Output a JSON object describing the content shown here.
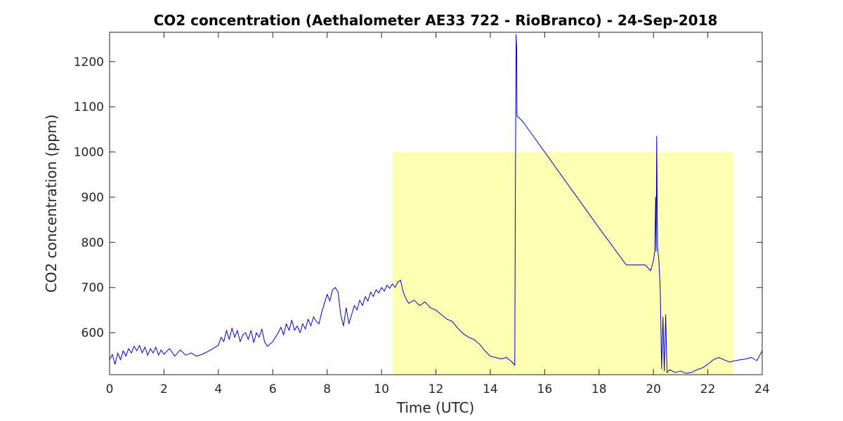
{
  "chart_data": {
    "type": "line",
    "title": "CO2 concentration (Aethalometer AE33 722 - RioBranco) - 24-Sep-2018",
    "xlabel": "Time (UTC)",
    "ylabel": "CO2 concentration (ppm)",
    "xlim": [
      0,
      24
    ],
    "ylim": [
      507,
      1265
    ],
    "xticks": [
      0,
      2,
      4,
      6,
      8,
      10,
      12,
      14,
      16,
      18,
      20,
      22,
      24
    ],
    "yticks": [
      600,
      700,
      800,
      900,
      1000,
      1100,
      1200
    ],
    "grid": false,
    "line_color": "#0000cc",
    "highlight": {
      "x_start": 10.4,
      "x_end": 22.95,
      "y_top": 1000,
      "color": "#ffffb4"
    },
    "series": [
      {
        "values": [
          [
            0.0,
            540
          ],
          [
            0.1,
            552
          ],
          [
            0.2,
            530
          ],
          [
            0.3,
            555
          ],
          [
            0.4,
            540
          ],
          [
            0.5,
            560
          ],
          [
            0.6,
            548
          ],
          [
            0.7,
            565
          ],
          [
            0.8,
            555
          ],
          [
            0.9,
            570
          ],
          [
            1.0,
            560
          ],
          [
            1.1,
            572
          ],
          [
            1.2,
            555
          ],
          [
            1.3,
            568
          ],
          [
            1.4,
            550
          ],
          [
            1.5,
            565
          ],
          [
            1.6,
            555
          ],
          [
            1.7,
            568
          ],
          [
            1.8,
            550
          ],
          [
            1.9,
            562
          ],
          [
            2.0,
            552
          ],
          [
            2.2,
            565
          ],
          [
            2.4,
            548
          ],
          [
            2.6,
            562
          ],
          [
            2.8,
            550
          ],
          [
            3.0,
            555
          ],
          [
            3.2,
            548
          ],
          [
            3.4,
            552
          ],
          [
            3.6,
            558
          ],
          [
            3.8,
            565
          ],
          [
            4.0,
            572
          ],
          [
            4.1,
            590
          ],
          [
            4.2,
            580
          ],
          [
            4.3,
            605
          ],
          [
            4.4,
            585
          ],
          [
            4.5,
            610
          ],
          [
            4.6,
            590
          ],
          [
            4.7,
            605
          ],
          [
            4.8,
            580
          ],
          [
            4.9,
            595
          ],
          [
            5.0,
            600
          ],
          [
            5.1,
            585
          ],
          [
            5.2,
            605
          ],
          [
            5.3,
            578
          ],
          [
            5.4,
            600
          ],
          [
            5.5,
            590
          ],
          [
            5.6,
            608
          ],
          [
            5.7,
            580
          ],
          [
            5.8,
            570
          ],
          [
            5.9,
            575
          ],
          [
            6.0,
            580
          ],
          [
            6.1,
            590
          ],
          [
            6.2,
            600
          ],
          [
            6.3,
            612
          ],
          [
            6.4,
            595
          ],
          [
            6.5,
            620
          ],
          [
            6.6,
            605
          ],
          [
            6.7,
            628
          ],
          [
            6.8,
            605
          ],
          [
            6.9,
            615
          ],
          [
            7.0,
            600
          ],
          [
            7.1,
            620
          ],
          [
            7.2,
            608
          ],
          [
            7.3,
            630
          ],
          [
            7.4,
            615
          ],
          [
            7.5,
            635
          ],
          [
            7.6,
            625
          ],
          [
            7.7,
            620
          ],
          [
            7.8,
            645
          ],
          [
            7.9,
            665
          ],
          [
            8.0,
            685
          ],
          [
            8.1,
            670
          ],
          [
            8.2,
            695
          ],
          [
            8.3,
            700
          ],
          [
            8.4,
            690
          ],
          [
            8.5,
            640
          ],
          [
            8.6,
            615
          ],
          [
            8.7,
            655
          ],
          [
            8.8,
            620
          ],
          [
            8.9,
            640
          ],
          [
            9.0,
            660
          ],
          [
            9.1,
            650
          ],
          [
            9.2,
            672
          ],
          [
            9.3,
            660
          ],
          [
            9.4,
            680
          ],
          [
            9.5,
            670
          ],
          [
            9.6,
            690
          ],
          [
            9.7,
            680
          ],
          [
            9.8,
            695
          ],
          [
            9.9,
            688
          ],
          [
            10.0,
            700
          ],
          [
            10.1,
            692
          ],
          [
            10.2,
            705
          ],
          [
            10.3,
            698
          ],
          [
            10.4,
            708
          ],
          [
            10.5,
            700
          ],
          [
            10.6,
            712
          ],
          [
            10.7,
            716
          ],
          [
            10.8,
            690
          ],
          [
            10.9,
            675
          ],
          [
            11.0,
            665
          ],
          [
            11.2,
            672
          ],
          [
            11.4,
            660
          ],
          [
            11.6,
            668
          ],
          [
            11.8,
            655
          ],
          [
            12.0,
            650
          ],
          [
            12.2,
            640
          ],
          [
            12.4,
            630
          ],
          [
            12.6,
            625
          ],
          [
            12.8,
            610
          ],
          [
            13.0,
            598
          ],
          [
            13.2,
            590
          ],
          [
            13.4,
            585
          ],
          [
            13.6,
            575
          ],
          [
            13.8,
            560
          ],
          [
            14.0,
            548
          ],
          [
            14.2,
            545
          ],
          [
            14.4,
            542
          ],
          [
            14.6,
            545
          ],
          [
            14.8,
            535
          ],
          [
            14.9,
            528
          ],
          [
            14.92,
            870
          ],
          [
            14.95,
            1260
          ],
          [
            14.97,
            1230
          ],
          [
            14.98,
            1080
          ],
          [
            15.2,
            1067
          ],
          [
            16.0,
            1000
          ],
          [
            17.0,
            916
          ],
          [
            18.0,
            832
          ],
          [
            19.0,
            750
          ],
          [
            19.7,
            750
          ],
          [
            19.9,
            737
          ],
          [
            20.0,
            760
          ],
          [
            20.05,
            780
          ],
          [
            20.08,
            900
          ],
          [
            20.1,
            780
          ],
          [
            20.12,
            1035
          ],
          [
            20.15,
            790
          ],
          [
            20.2,
            760
          ],
          [
            20.25,
            700
          ],
          [
            20.3,
            520
          ],
          [
            20.35,
            635
          ],
          [
            20.4,
            515
          ],
          [
            20.45,
            640
          ],
          [
            20.5,
            512
          ],
          [
            20.6,
            518
          ],
          [
            20.8,
            512
          ],
          [
            21.0,
            515
          ],
          [
            21.2,
            510
          ],
          [
            21.4,
            512
          ],
          [
            21.6,
            518
          ],
          [
            21.8,
            522
          ],
          [
            22.0,
            530
          ],
          [
            22.2,
            540
          ],
          [
            22.4,
            545
          ],
          [
            22.6,
            540
          ],
          [
            22.8,
            535
          ],
          [
            23.0,
            538
          ],
          [
            23.2,
            540
          ],
          [
            23.4,
            542
          ],
          [
            23.6,
            545
          ],
          [
            23.8,
            538
          ],
          [
            24.0,
            560
          ]
        ]
      }
    ]
  }
}
